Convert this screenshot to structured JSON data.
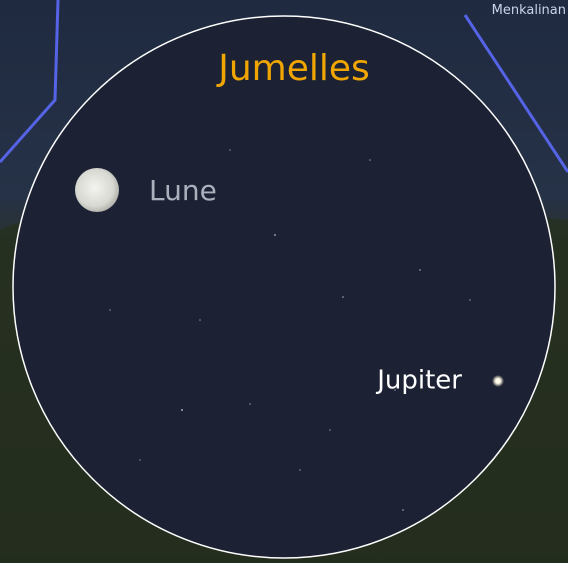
{
  "star_label": "Menkalinan",
  "view": {
    "title": "Jumelles",
    "objects": [
      {
        "label": "Lune"
      },
      {
        "label": "Jupiter"
      }
    ]
  }
}
